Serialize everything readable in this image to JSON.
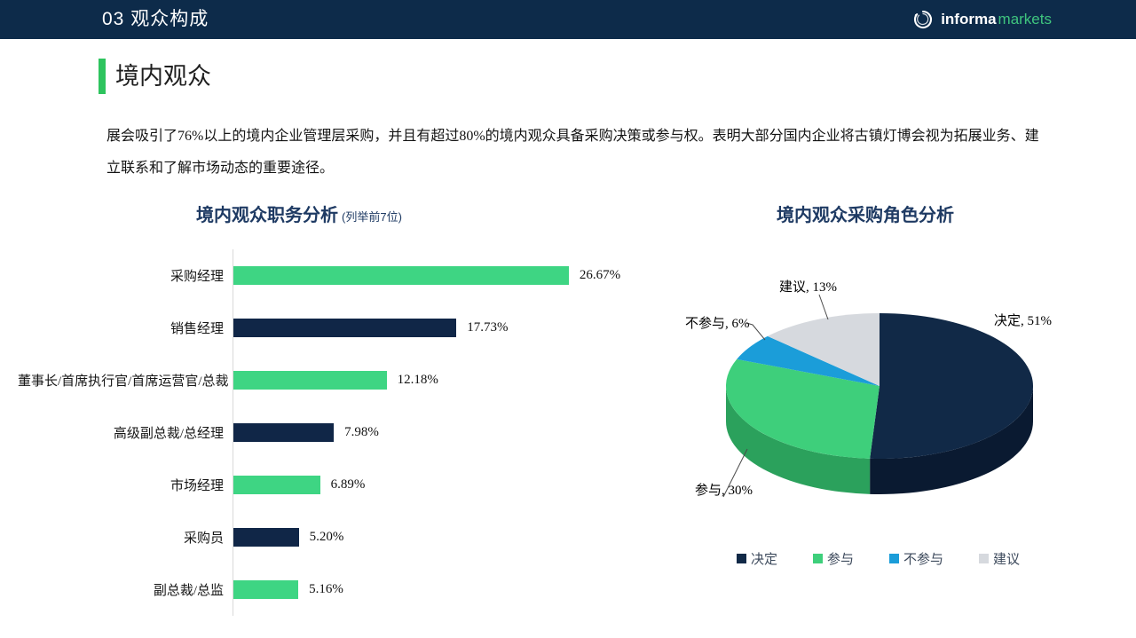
{
  "header": {
    "title": "03 观众构成",
    "logo": {
      "informa": "informa",
      "markets": "markets"
    }
  },
  "section": {
    "heading": "境内观众",
    "paragraph": "展会吸引了76%以上的境内企业管理层采购，并且有超过80%的境内观众具备采购决策或参与权。表明大部分国内企业将古镇灯博会视为拓展业务、建立联系和了解市场动态的重要途径。"
  },
  "bar_title": {
    "main": "境内观众职务分析",
    "sub": "(列举前7位)"
  },
  "pie_title": "境内观众采购角色分析",
  "chart_data": [
    {
      "type": "bar",
      "orientation": "horizontal",
      "title": "境内观众职务分析 (列举前7位)",
      "categories": [
        "采购经理",
        "销售经理",
        "董事长/首席执行官/首席运营官/总裁",
        "高级副总裁/总经理",
        "市场经理",
        "采购员",
        "副总裁/总监"
      ],
      "values": [
        26.67,
        17.73,
        12.18,
        7.98,
        6.89,
        5.2,
        5.16
      ],
      "value_labels": [
        "26.67%",
        "17.73%",
        "12.18%",
        "7.98%",
        "6.89%",
        "5.20%",
        "5.16%"
      ],
      "bar_colors": [
        "#3ed583",
        "#102647",
        "#3ed583",
        "#102647",
        "#3ed583",
        "#102647",
        "#3ed583"
      ],
      "xlim": [
        0,
        28
      ],
      "grid": false,
      "axis_line_color": "#d9d9d9"
    },
    {
      "type": "pie",
      "style": "3d",
      "title": "境内观众采购角色分析",
      "labels": [
        "决定",
        "参与",
        "不参与",
        "建议"
      ],
      "values": [
        51,
        30,
        6,
        13
      ],
      "data_labels": [
        "决定, 51%",
        "参与, 30%",
        "不参与, 6%",
        "建议, 13%"
      ],
      "colors": [
        "#112947",
        "#3ecf7b",
        "#1b9dd9",
        "#d6d9de"
      ],
      "side_colors": [
        "#0a1a31",
        "#2ba15c",
        "#11719c",
        "#aab0b8"
      ],
      "legend": [
        "决定",
        "参与",
        "不参与",
        "建议"
      ],
      "legend_position": "bottom",
      "start_angle_deg": 0,
      "direction": "clockwise"
    }
  ],
  "colors": {
    "header_bg": "#0d2b4a",
    "accent_green": "#2ec45e",
    "navy": "#102647",
    "green": "#3ed583",
    "blue": "#1b9dd9",
    "light_gray": "#d6d9de",
    "title_navy": "#1e3a63",
    "logo_green": "#3fc47e"
  }
}
